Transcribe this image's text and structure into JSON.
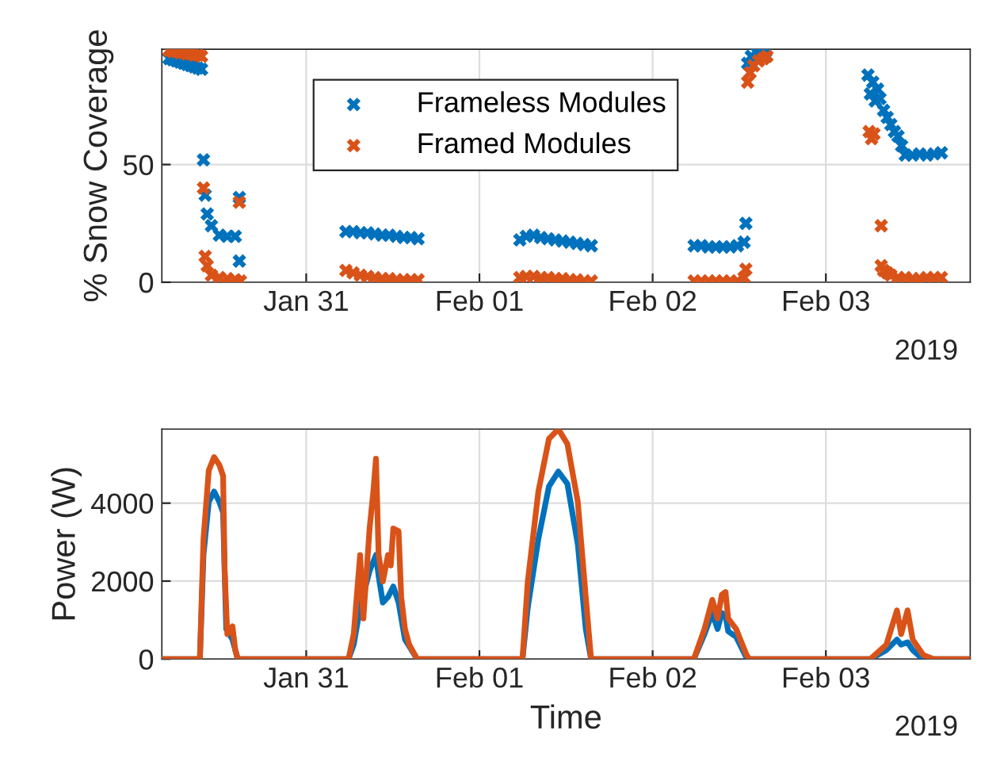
{
  "chart_data": [
    {
      "type": "scatter",
      "ylabel": "% Snow Coverage",
      "marker": "cross",
      "grid": true,
      "legend": "top left",
      "xlim": [
        "2019-01-30T04:00",
        "2019-02-03T20:00"
      ],
      "ylim": [
        0,
        99
      ],
      "yticks": [
        0,
        50
      ],
      "xticks": [
        {
          "value": "2019-01-31",
          "label": "Jan 31"
        },
        {
          "value": "2019-02-01",
          "label": "Feb 01"
        },
        {
          "value": "2019-02-02",
          "label": "Feb 02"
        },
        {
          "value": "2019-02-03",
          "label": "Feb 03"
        }
      ],
      "annotations": [
        "2019"
      ],
      "series": [
        {
          "name": "Frameless Modules",
          "color": "#0072bd",
          "x": [
            "2019-01-30T05:00",
            "2019-01-30T05:30",
            "2019-01-30T06:00",
            "2019-01-30T06:30",
            "2019-01-30T07:00",
            "2019-01-30T07:30",
            "2019-01-30T08:00",
            "2019-01-30T08:30",
            "2019-01-30T09:00",
            "2019-01-30T09:30",
            "2019-01-30T09:46",
            "2019-01-30T10:00",
            "2019-01-30T10:17",
            "2019-01-30T10:52",
            "2019-01-30T11:58",
            "2019-01-30T13:04",
            "2019-01-30T14:10",
            "2019-01-30T14:44",
            "2019-01-30T14:44",
            "2019-01-31T05:30",
            "2019-01-31T06:30",
            "2019-01-31T07:30",
            "2019-01-31T08:30",
            "2019-01-31T09:30",
            "2019-01-31T10:30",
            "2019-01-31T11:30",
            "2019-01-31T12:30",
            "2019-01-31T13:30",
            "2019-01-31T14:30",
            "2019-01-31T15:30",
            "2019-02-01T05:36",
            "2019-02-01T06:30",
            "2019-02-01T07:30",
            "2019-02-01T08:30",
            "2019-02-01T09:30",
            "2019-02-01T10:30",
            "2019-02-01T11:30",
            "2019-02-01T12:30",
            "2019-02-01T13:30",
            "2019-02-01T14:30",
            "2019-02-01T15:30",
            "2019-02-02T05:45",
            "2019-02-02T06:45",
            "2019-02-02T07:45",
            "2019-02-02T08:45",
            "2019-02-02T09:45",
            "2019-02-02T10:45",
            "2019-02-02T11:45",
            "2019-02-02T12:40",
            "2019-02-02T12:55",
            "2019-02-02T13:10",
            "2019-02-02T13:40",
            "2019-02-02T14:20",
            "2019-02-02T15:00",
            "2019-02-02T15:40",
            "2019-02-03T05:50",
            "2019-02-03T06:10",
            "2019-02-03T06:30",
            "2019-02-03T06:50",
            "2019-02-03T07:10",
            "2019-02-03T07:30",
            "2019-02-03T08:00",
            "2019-02-03T08:30",
            "2019-02-03T09:00",
            "2019-02-03T09:30",
            "2019-02-03T10:00",
            "2019-02-03T10:30",
            "2019-02-03T11:00",
            "2019-02-03T12:00",
            "2019-02-03T13:00",
            "2019-02-03T14:00",
            "2019-02-03T15:00",
            "2019-02-03T16:00"
          ],
          "values": [
            95,
            94.5,
            94,
            93.5,
            93,
            92.5,
            92,
            91.5,
            91,
            90.5,
            52,
            37,
            29,
            24,
            20,
            19.5,
            19.5,
            36,
            9,
            21.5,
            21.5,
            21,
            21,
            20.5,
            20,
            20,
            19.5,
            19,
            19,
            18.5,
            18,
            19.5,
            20,
            19,
            18.5,
            18,
            17.5,
            17,
            16.5,
            16,
            15.5,
            15.5,
            15.5,
            15,
            15,
            15,
            15,
            15.5,
            17,
            25,
            93,
            96,
            98,
            98,
            98,
            88,
            80,
            85,
            77,
            82,
            78,
            73,
            70,
            67,
            64,
            62,
            58,
            54,
            54,
            54.5,
            54,
            54.5,
            55
          ]
        },
        {
          "name": "Framed Modules",
          "color": "#d95319",
          "x": [
            "2019-01-30T05:00",
            "2019-01-30T05:30",
            "2019-01-30T06:00",
            "2019-01-30T06:30",
            "2019-01-30T07:00",
            "2019-01-30T07:30",
            "2019-01-30T08:00",
            "2019-01-30T08:30",
            "2019-01-30T09:00",
            "2019-01-30T09:30",
            "2019-01-30T09:46",
            "2019-01-30T10:00",
            "2019-01-30T10:17",
            "2019-01-30T10:52",
            "2019-01-30T11:58",
            "2019-01-30T13:04",
            "2019-01-30T14:10",
            "2019-01-30T14:44",
            "2019-01-30T14:53",
            "2019-01-31T05:30",
            "2019-01-31T06:30",
            "2019-01-31T07:30",
            "2019-01-31T08:30",
            "2019-01-31T09:30",
            "2019-01-31T10:30",
            "2019-01-31T11:30",
            "2019-01-31T12:30",
            "2019-01-31T13:30",
            "2019-01-31T14:30",
            "2019-01-31T15:30",
            "2019-02-01T05:36",
            "2019-02-01T06:30",
            "2019-02-01T07:30",
            "2019-02-01T08:30",
            "2019-02-01T09:30",
            "2019-02-01T10:30",
            "2019-02-01T11:30",
            "2019-02-01T12:30",
            "2019-02-01T13:30",
            "2019-02-01T14:30",
            "2019-02-01T15:30",
            "2019-02-02T05:45",
            "2019-02-02T06:45",
            "2019-02-02T07:45",
            "2019-02-02T08:45",
            "2019-02-02T09:45",
            "2019-02-02T10:45",
            "2019-02-02T11:45",
            "2019-02-02T12:40",
            "2019-02-02T12:55",
            "2019-02-02T13:10",
            "2019-02-02T13:30",
            "2019-02-02T14:00",
            "2019-02-02T14:40",
            "2019-02-02T15:20",
            "2019-02-02T15:50",
            "2019-02-03T06:00",
            "2019-02-03T06:20",
            "2019-02-03T06:40",
            "2019-02-03T07:40",
            "2019-02-03T07:40",
            "2019-02-03T08:00",
            "2019-02-03T08:30",
            "2019-02-03T09:00",
            "2019-02-03T10:00",
            "2019-02-03T11:00",
            "2019-02-03T12:00",
            "2019-02-03T13:00",
            "2019-02-03T14:00",
            "2019-02-03T15:00",
            "2019-02-03T16:00"
          ],
          "values": [
            98.5,
            98,
            98,
            97.5,
            97.5,
            97,
            97,
            96.5,
            96.5,
            96,
            40,
            11,
            7,
            3,
            2,
            1.5,
            1,
            34,
            0.5,
            5,
            4,
            3,
            2.5,
            2,
            1.5,
            1.5,
            1,
            1,
            1,
            1,
            2,
            2.5,
            2.5,
            2,
            2,
            1.5,
            1.5,
            1,
            1,
            0.5,
            0.5,
            0.5,
            0.5,
            0.5,
            0.5,
            0.5,
            0.5,
            0.5,
            2,
            5.5,
            85,
            89,
            92,
            94,
            95,
            96,
            64,
            61,
            63,
            24,
            7,
            5,
            4,
            3,
            2,
            2,
            1.5,
            1.5,
            2,
            2,
            2
          ]
        }
      ]
    },
    {
      "type": "line",
      "xlabel": "Time",
      "ylabel": "Power (W)",
      "grid": true,
      "line_style": "solid",
      "xlim": [
        "2019-01-30T04:00",
        "2019-02-03T20:00"
      ],
      "ylim": [
        0,
        5900
      ],
      "yticks": [
        0,
        2000,
        4000
      ],
      "xticks": [
        {
          "value": "2019-01-31",
          "label": "Jan 31"
        },
        {
          "value": "2019-02-01",
          "label": "Feb 01"
        },
        {
          "value": "2019-02-02",
          "label": "Feb 02"
        },
        {
          "value": "2019-02-03",
          "label": "Feb 03"
        }
      ],
      "annotations": [
        "2019"
      ],
      "series": [
        {
          "color": "#0072bd",
          "x": [
            "2019-01-30T04:00",
            "2019-01-30T09:16",
            "2019-01-30T09:46",
            "2019-01-30T10:30",
            "2019-01-30T11:14",
            "2019-01-30T11:58",
            "2019-01-30T12:29",
            "2019-01-30T12:55",
            "2019-01-30T13:47",
            "2019-01-30T14:31",
            "2019-01-31T05:52",
            "2019-01-31T06:35",
            "2019-01-31T07:28",
            "2019-01-31T08:47",
            "2019-01-31T09:40",
            "2019-01-31T10:02",
            "2019-01-31T10:37",
            "2019-01-31T11:20",
            "2019-01-31T12:04",
            "2019-01-31T12:48",
            "2019-01-31T13:41",
            "2019-01-31T15:22",
            "2019-02-01T05:58",
            "2019-02-01T06:42",
            "2019-02-01T08:10",
            "2019-02-01T09:38",
            "2019-02-01T10:56",
            "2019-02-01T12:11",
            "2019-02-01T13:38",
            "2019-02-01T14:44",
            "2019-02-01T15:28",
            "2019-02-02T05:43",
            "2019-02-02T07:11",
            "2019-02-02T08:16",
            "2019-02-02T09:00",
            "2019-02-02T09:35",
            "2019-02-02T10:06",
            "2019-02-02T10:28",
            "2019-02-02T11:34",
            "2019-02-02T13:01",
            "2019-02-02T13:23",
            "2019-02-03T06:11",
            "2019-02-03T08:23",
            "2019-02-03T09:51",
            "2019-02-03T10:26",
            "2019-02-03T11:19",
            "2019-02-03T12:02",
            "2019-02-03T13:15",
            "2019-02-03T14:30",
            "2019-02-03T20:00"
          ],
          "values": [
            0,
            0,
            2670,
            4030,
            4300,
            4030,
            3760,
            770,
            500,
            0,
            0,
            370,
            1320,
            2260,
            2670,
            2130,
            1450,
            1590,
            1860,
            1450,
            500,
            0,
            0,
            1320,
            3080,
            4430,
            4810,
            4500,
            2940,
            770,
            0,
            0,
            640,
            1180,
            770,
            1180,
            1110,
            710,
            570,
            30,
            0,
            0,
            230,
            500,
            370,
            430,
            230,
            30,
            0,
            0
          ]
        },
        {
          "color": "#d95319",
          "x": [
            "2019-01-30T04:00",
            "2019-01-30T09:16",
            "2019-01-30T09:46",
            "2019-01-30T10:30",
            "2019-01-30T11:14",
            "2019-01-30T11:58",
            "2019-01-30T12:29",
            "2019-01-30T12:42",
            "2019-01-30T13:04",
            "2019-01-30T13:47",
            "2019-01-30T14:10",
            "2019-01-30T14:31",
            "2019-01-31T05:52",
            "2019-01-31T06:35",
            "2019-01-31T07:28",
            "2019-01-31T07:55",
            "2019-01-31T08:47",
            "2019-01-31T09:18",
            "2019-01-31T09:40",
            "2019-01-31T10:02",
            "2019-01-31T10:37",
            "2019-01-31T11:20",
            "2019-01-31T11:43",
            "2019-01-31T12:04",
            "2019-01-31T12:48",
            "2019-01-31T13:10",
            "2019-01-31T13:41",
            "2019-01-31T14:16",
            "2019-01-31T15:22",
            "2019-02-01T05:58",
            "2019-02-01T06:42",
            "2019-02-01T08:10",
            "2019-02-01T09:38",
            "2019-02-01T10:56",
            "2019-02-01T12:11",
            "2019-02-01T13:38",
            "2019-02-01T14:44",
            "2019-02-01T15:28",
            "2019-02-02T05:43",
            "2019-02-02T07:11",
            "2019-02-02T08:16",
            "2019-02-02T09:00",
            "2019-02-02T09:35",
            "2019-02-02T10:06",
            "2019-02-02T10:28",
            "2019-02-02T11:34",
            "2019-02-02T13:01",
            "2019-02-02T13:23",
            "2019-02-03T06:11",
            "2019-02-03T08:23",
            "2019-02-03T09:51",
            "2019-02-03T10:26",
            "2019-02-03T11:19",
            "2019-02-03T12:02",
            "2019-02-03T13:30",
            "2019-02-03T14:58",
            "2019-02-03T20:00"
          ],
          "values": [
            0,
            0,
            3080,
            4840,
            5180,
            4980,
            4700,
            2260,
            640,
            840,
            230,
            0,
            0,
            640,
            2670,
            1040,
            3350,
            4300,
            5140,
            2670,
            1990,
            2670,
            2400,
            3350,
            3280,
            1590,
            770,
            370,
            0,
            0,
            1990,
            4300,
            5650,
            5900,
            5520,
            4030,
            1590,
            0,
            0,
            770,
            1520,
            1040,
            1650,
            1720,
            1040,
            770,
            100,
            0,
            0,
            370,
            1250,
            640,
            1250,
            500,
            100,
            0,
            0
          ]
        }
      ]
    }
  ]
}
